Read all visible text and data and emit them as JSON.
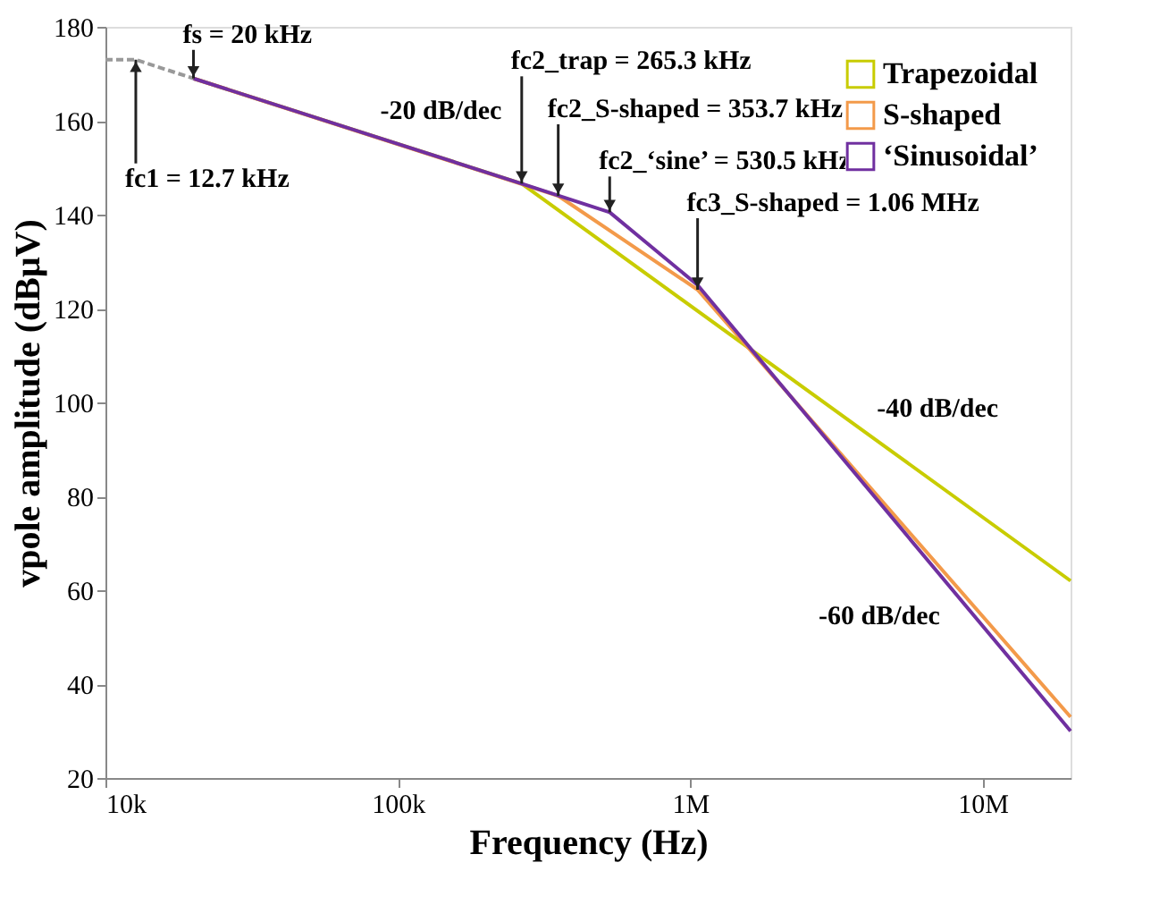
{
  "chart_data": {
    "type": "line",
    "xlabel": "Frequency (Hz)",
    "ylabel": "vpole amplitude (dBμV)",
    "log": "x",
    "xlim": [
      10000,
      20000000
    ],
    "ylim": [
      20,
      180
    ],
    "xticks": [
      {
        "value": 10000,
        "label": "10k"
      },
      {
        "value": 100000,
        "label": "100k"
      },
      {
        "value": 1000000,
        "label": "1M"
      },
      {
        "value": 10000000,
        "label": "10M"
      }
    ],
    "yticks": [
      20,
      40,
      60,
      80,
      100,
      120,
      140,
      160,
      180
    ],
    "grid": false,
    "legend": "top right",
    "marker": "none",
    "series": [
      {
        "name": "Trapezoidal",
        "color": "#c8cc00",
        "x": [
          20000,
          265300,
          20000000
        ],
        "values": [
          169,
          146.6,
          62
        ]
      },
      {
        "name": "S-shaped",
        "color": "#f39a4a",
        "x": [
          20000,
          353700,
          1060000,
          20000000
        ],
        "values": [
          169,
          144,
          124,
          33
        ]
      },
      {
        "name": "‘Sinusoidal’",
        "color": "#7030a0",
        "x": [
          20000,
          265300,
          530500,
          1060000,
          20000000
        ],
        "values": [
          169,
          146.6,
          140.5,
          125,
          30
        ]
      },
      {
        "color": "#999999",
        "line_style": "dashed",
        "x": [
          10000,
          12700,
          20000
        ],
        "values": [
          173,
          173,
          169
        ]
      }
    ],
    "annotations": [
      {
        "text": "fs = 20 kHz",
        "x": 20000,
        "y": 169
      },
      {
        "text": "fc1 = 12.7 kHz",
        "x": 12700,
        "y": 173
      },
      {
        "text": "fc2_trap = 265.3 kHz",
        "x": 265300,
        "y": 146.6
      },
      {
        "text": "fc2_S-shaped = 353.7 kHz",
        "x": 353700,
        "y": 144
      },
      {
        "text": "fc2_‘sine’ = 530.5 kHz",
        "x": 530500,
        "y": 140.5
      },
      {
        "text": "fc3_S-shaped = 1.06 MHz",
        "x": 1060000,
        "y": 124
      },
      {
        "text": "-20 dB/dec",
        "x": 80000,
        "y": 157
      },
      {
        "text": "-40 dB/dec",
        "x": 4000000,
        "y": 93.5
      },
      {
        "text": "-60 dB/dec",
        "x": 8000000,
        "y": 59.6
      }
    ]
  }
}
